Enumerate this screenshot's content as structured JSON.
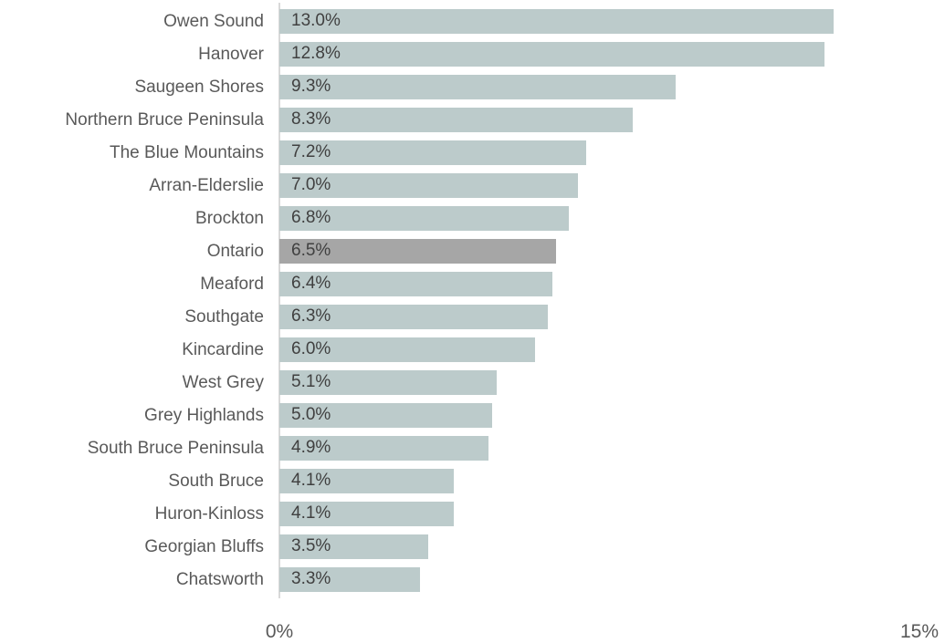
{
  "chart_data": {
    "type": "bar",
    "orientation": "horizontal",
    "title": "",
    "xlabel": "",
    "ylabel": "",
    "categories": [
      "Owen Sound",
      "Hanover",
      "Saugeen Shores",
      "Northern Bruce Peninsula",
      "The Blue Mountains",
      "Arran-Elderslie",
      "Brockton",
      "Ontario",
      "Meaford",
      "Southgate",
      "Kincardine",
      "West Grey",
      "Grey Highlands",
      "South Bruce Peninsula",
      "South Bruce",
      "Huron-Kinloss",
      "Georgian Bluffs",
      "Chatsworth"
    ],
    "values": [
      13.0,
      12.8,
      9.3,
      8.3,
      7.2,
      7.0,
      6.8,
      6.5,
      6.4,
      6.3,
      6.0,
      5.1,
      5.0,
      4.9,
      4.1,
      4.1,
      3.5,
      3.3
    ],
    "value_labels": [
      "13.0%",
      "12.8%",
      "9.3%",
      "8.3%",
      "7.2%",
      "7.0%",
      "6.8%",
      "6.5%",
      "6.4%",
      "6.3%",
      "6.0%",
      "5.1%",
      "5.0%",
      "4.9%",
      "4.1%",
      "4.1%",
      "3.5%",
      "3.3%"
    ],
    "highlighted_category": "Ontario",
    "xlim": [
      0,
      15
    ],
    "x_ticks": [
      "0%",
      "15%"
    ],
    "grid": false,
    "legend": false,
    "colors": {
      "bar": "#bccbcb",
      "highlight_bar": "#a6a6a6",
      "label_text": "#595959",
      "value_text": "#404040",
      "axis_line": "#d9d9d9"
    }
  }
}
